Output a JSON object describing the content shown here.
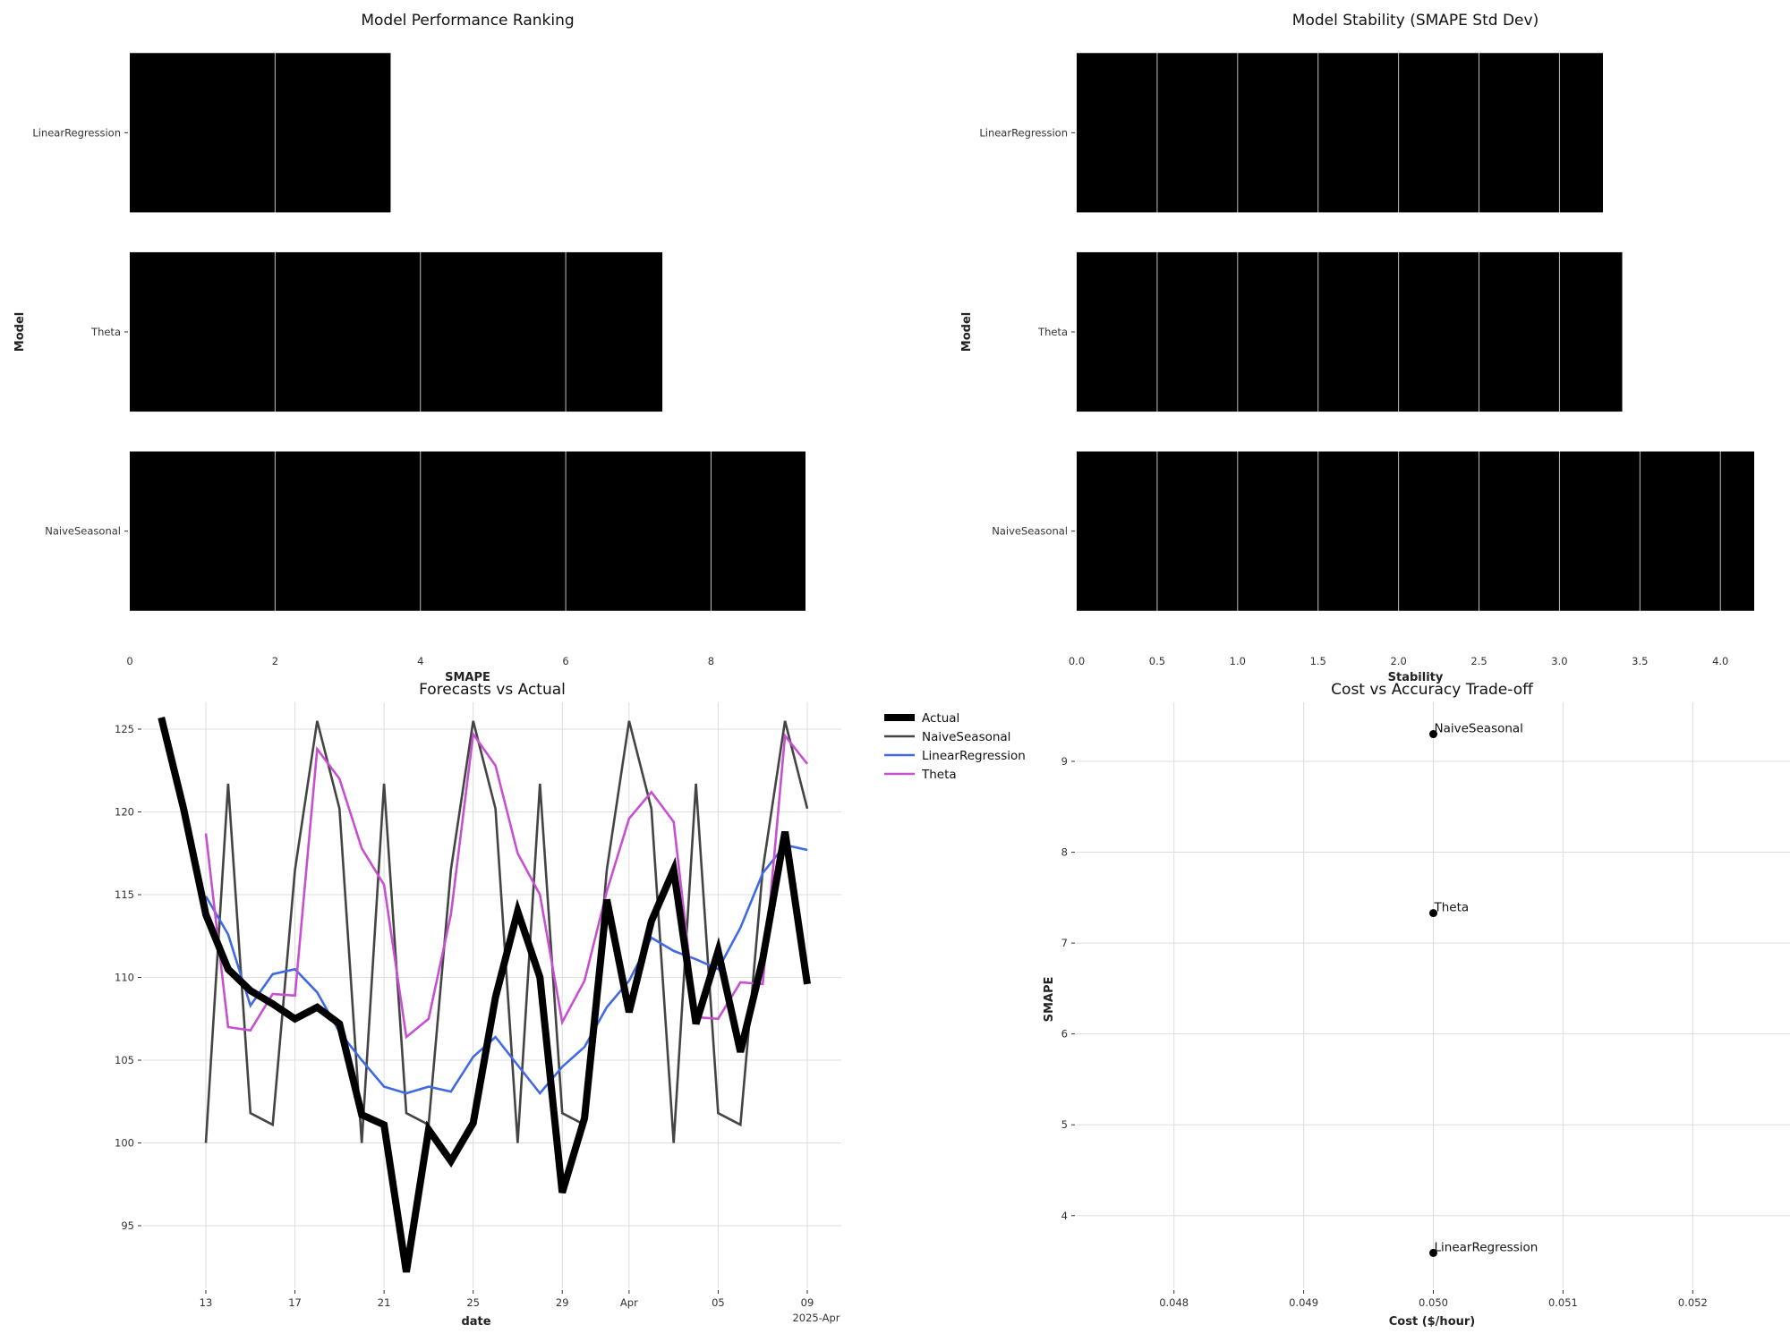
{
  "chart_data": [
    {
      "type": "bar",
      "orientation": "horizontal",
      "title": "Model Performance Ranking",
      "xlabel": "SMAPE",
      "ylabel": "Model",
      "categories": [
        "LinearRegression",
        "Theta",
        "NaiveSeasonal"
      ],
      "values": [
        3.59,
        7.33,
        9.3
      ],
      "xlim": [
        0,
        9.3
      ],
      "xticks": [
        "0",
        "2",
        "4",
        "6",
        "8"
      ],
      "bar_color": "#000000",
      "grid": true
    },
    {
      "type": "bar",
      "orientation": "horizontal",
      "title": "Model Stability (SMAPE Std Dev)",
      "xlabel": "Stability",
      "ylabel": "Model",
      "categories": [
        "LinearRegression",
        "Theta",
        "NaiveSeasonal"
      ],
      "values": [
        3.27,
        3.39,
        4.21
      ],
      "xlim": [
        0,
        4.21
      ],
      "xticks": [
        "0.0",
        "0.5",
        "1.0",
        "1.5",
        "2.0",
        "2.5",
        "3.0",
        "3.5",
        "4.0"
      ],
      "bar_color": "#000000",
      "grid": true
    },
    {
      "type": "line",
      "title": "Forecasts vs Actual",
      "xlabel": "date",
      "ylabel": "",
      "ylim": [
        92,
        126
      ],
      "yticks": [
        "95",
        "100",
        "105",
        "110",
        "115",
        "120",
        "125"
      ],
      "xticks": [
        {
          "x": "2025-03-13",
          "label": "13"
        },
        {
          "x": "2025-03-17",
          "label": "17"
        },
        {
          "x": "2025-03-21",
          "label": "21"
        },
        {
          "x": "2025-03-25",
          "label": "25"
        },
        {
          "x": "2025-03-29",
          "label": "29"
        },
        {
          "x": "2025-04-01",
          "label": "Apr"
        },
        {
          "x": "2025-04-05",
          "label": "05"
        },
        {
          "x": "2025-04-09",
          "label": "09"
        }
      ],
      "xtick_sublabel": "2025-Apr",
      "legend_position": "outside-right",
      "grid": true,
      "series": [
        {
          "name": "Actual",
          "color": "#000000",
          "x": [
            "2025-03-11",
            "2025-03-12",
            "2025-03-13",
            "2025-03-14",
            "2025-03-15",
            "2025-03-16",
            "2025-03-17",
            "2025-03-18",
            "2025-03-19",
            "2025-03-20",
            "2025-03-21",
            "2025-03-22",
            "2025-03-23",
            "2025-03-24",
            "2025-03-25",
            "2025-03-26",
            "2025-03-27",
            "2025-03-28",
            "2025-03-29",
            "2025-03-30",
            "2025-03-31",
            "2025-04-01",
            "2025-04-02",
            "2025-04-03",
            "2025-04-04",
            "2025-04-05",
            "2025-04-06",
            "2025-04-07",
            "2025-04-08",
            "2025-04-09"
          ],
          "values": [
            125.7,
            120.2,
            113.8,
            110.5,
            109.2,
            108.4,
            107.5,
            108.2,
            107.2,
            101.7,
            101.1,
            92.2,
            100.8,
            98.9,
            101.2,
            108.8,
            114.0,
            110.0,
            97.0,
            101.5,
            114.7,
            107.9,
            113.4,
            116.5,
            107.2,
            111.6,
            105.5,
            111.1,
            118.8,
            109.6
          ]
        },
        {
          "name": "NaiveSeasonal",
          "color": "#444444",
          "x": [
            "2025-03-13",
            "2025-03-14",
            "2025-03-15",
            "2025-03-16",
            "2025-03-17",
            "2025-03-18",
            "2025-03-19",
            "2025-03-20",
            "2025-03-21",
            "2025-03-22",
            "2025-03-23",
            "2025-03-24",
            "2025-03-25",
            "2025-03-26",
            "2025-03-27",
            "2025-03-28",
            "2025-03-29",
            "2025-03-30",
            "2025-03-31",
            "2025-04-01",
            "2025-04-02",
            "2025-04-03",
            "2025-04-04",
            "2025-04-05",
            "2025-04-06",
            "2025-04-07",
            "2025-04-08",
            "2025-04-09"
          ],
          "values": [
            100.0,
            121.7,
            101.8,
            101.1,
            116.5,
            125.5,
            120.2,
            100.0,
            121.7,
            101.8,
            101.1,
            116.5,
            125.5,
            120.2,
            100.0,
            121.7,
            101.8,
            101.1,
            116.5,
            125.5,
            120.2,
            100.0,
            121.7,
            101.8,
            101.1,
            116.5,
            125.5,
            120.2
          ]
        },
        {
          "name": "LinearRegression",
          "color": "#4169e1",
          "x": [
            "2025-03-13",
            "2025-03-14",
            "2025-03-15",
            "2025-03-16",
            "2025-03-17",
            "2025-03-18",
            "2025-03-19",
            "2025-03-20",
            "2025-03-21",
            "2025-03-22",
            "2025-03-23",
            "2025-03-24",
            "2025-03-25",
            "2025-03-26",
            "2025-03-27",
            "2025-03-28",
            "2025-03-29",
            "2025-03-30",
            "2025-03-31",
            "2025-04-01",
            "2025-04-02",
            "2025-04-03",
            "2025-04-04",
            "2025-04-05",
            "2025-04-06",
            "2025-04-07",
            "2025-04-08",
            "2025-04-09"
          ],
          "values": [
            114.9,
            112.6,
            108.3,
            110.2,
            110.5,
            109.1,
            106.7,
            105.0,
            103.4,
            103.0,
            103.4,
            103.1,
            105.2,
            106.4,
            104.7,
            103.0,
            104.6,
            105.8,
            108.2,
            109.8,
            112.4,
            111.6,
            111.1,
            110.5,
            113.0,
            116.3,
            118.0,
            117.7
          ]
        },
        {
          "name": "Theta",
          "color": "#c650d0",
          "x": [
            "2025-03-13",
            "2025-03-14",
            "2025-03-15",
            "2025-03-16",
            "2025-03-17",
            "2025-03-18",
            "2025-03-19",
            "2025-03-20",
            "2025-03-21",
            "2025-03-22",
            "2025-03-23",
            "2025-03-24",
            "2025-03-25",
            "2025-03-26",
            "2025-03-27",
            "2025-03-28",
            "2025-03-29",
            "2025-03-30",
            "2025-03-31",
            "2025-04-01",
            "2025-04-02",
            "2025-04-03",
            "2025-04-04",
            "2025-04-05",
            "2025-04-06",
            "2025-04-07",
            "2025-04-08",
            "2025-04-09"
          ],
          "values": [
            118.7,
            107.0,
            106.8,
            109.0,
            108.9,
            123.8,
            122.0,
            117.8,
            115.6,
            106.4,
            107.5,
            113.8,
            124.7,
            122.8,
            117.5,
            115.0,
            107.3,
            109.8,
            115.2,
            119.6,
            121.2,
            119.4,
            107.6,
            107.5,
            109.7,
            109.6,
            124.6,
            122.9
          ]
        }
      ]
    },
    {
      "type": "scatter",
      "title": "Cost vs Accuracy Trade-off",
      "xlabel": "Cost ($/hour)",
      "ylabel": "SMAPE",
      "xlim": [
        0.04725,
        0.05275
      ],
      "ylim": [
        3.2,
        9.65
      ],
      "xticks": [
        "0.048",
        "0.049",
        "0.050",
        "0.051",
        "0.052"
      ],
      "yticks": [
        "4",
        "5",
        "6",
        "7",
        "8",
        "9"
      ],
      "grid": true,
      "points": [
        {
          "label": "NaiveSeasonal",
          "x": 0.05,
          "y": 9.3
        },
        {
          "label": "Theta",
          "x": 0.05,
          "y": 7.33
        },
        {
          "label": "LinearRegression",
          "x": 0.05,
          "y": 3.59
        }
      ],
      "marker_color": "#000000"
    }
  ]
}
